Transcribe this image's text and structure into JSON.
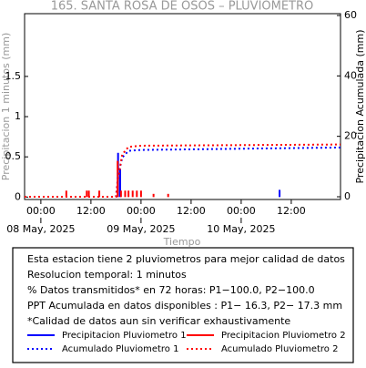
{
  "chart_data": {
    "type": "line",
    "title": "165. SANTA ROSA DE OSOS – PLUVIOMETRO",
    "ylabel": "Precipitacion 1 minutos (mm)",
    "y2label": "Precipitacion Acumulada (mm)",
    "xlabel": "Tiempo",
    "xlim": [
      -3.9,
      71.8
    ],
    "xticks": [
      {
        "value": 0,
        "label": "00:00"
      },
      {
        "value": 12,
        "label": "12:00"
      },
      {
        "value": 24,
        "label": "00:00"
      },
      {
        "value": 36,
        "label": "12:00"
      },
      {
        "value": 48,
        "label": "00:00"
      },
      {
        "value": 60,
        "label": "12:00"
      }
    ],
    "date_labels": [
      {
        "value": 0,
        "label": "08 May, 2025"
      },
      {
        "value": 24,
        "label": "09 May, 2025"
      },
      {
        "value": 48,
        "label": "10 May, 2025"
      }
    ],
    "ylim": [
      -0.03,
      2.28
    ],
    "yticks": [
      0,
      0.5,
      1,
      1.5
    ],
    "y2lim": [
      -0.9,
      60.6
    ],
    "y2ticks": [
      0,
      20,
      40,
      60
    ],
    "series": [
      {
        "name": "Precipitacion Pluviometro 1",
        "color": "#0000ff",
        "kind": "bars",
        "line_style": "solid",
        "x": [
          18.5,
          19.0,
          57.2
        ],
        "values": [
          0.55,
          0.35,
          0.09
        ]
      },
      {
        "name": "Precipitacion Pluviometro 2",
        "color": "#ff0000",
        "kind": "bars",
        "line_style": "solid",
        "x": [
          6.1,
          11.0,
          11.5,
          14.0,
          18.4,
          19.2,
          20.2,
          21.0,
          22.0,
          23.0,
          24.0,
          27.0,
          30.5
        ],
        "values": [
          0.08,
          0.08,
          0.08,
          0.08,
          0.45,
          0.08,
          0.08,
          0.08,
          0.08,
          0.08,
          0.08,
          0.04,
          0.04
        ]
      },
      {
        "name": "Acumulado Pluviometro 1",
        "color": "#0000ff",
        "kind": "line",
        "axis": "y2",
        "line_style": "dotted",
        "x": [
          -3.9,
          18.0,
          18.5,
          19.5,
          21.0,
          24.0,
          71.8
        ],
        "values": [
          0,
          0,
          7,
          13,
          15.2,
          15.5,
          16.3
        ]
      },
      {
        "name": "Acumulado Pluviometro 2",
        "color": "#ff0000",
        "kind": "line",
        "axis": "y2",
        "line_style": "dotted",
        "x": [
          -3.9,
          18.0,
          18.5,
          19.5,
          21.0,
          24.0,
          71.8
        ],
        "values": [
          0,
          0,
          6,
          14,
          16.5,
          16.9,
          17.3
        ]
      }
    ],
    "notes": [
      "Esta estacion tiene 2 pluviometros para mejor calidad de datos",
      "Resolucion temporal: 1 minutos",
      "% Datos transmitidos* en 72 horas: P1−100.0, P2−100.0",
      "PPT Acumulada en datos disponibles : P1− 16.3, P2− 17.3 mm",
      "*Calidad de datos aun sin verificar exhaustivamente"
    ]
  }
}
